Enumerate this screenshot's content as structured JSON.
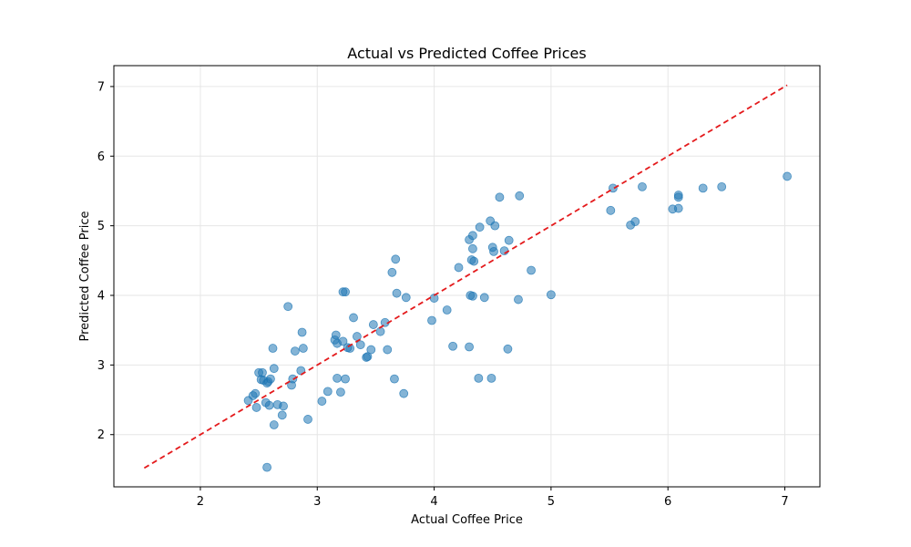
{
  "chart_data": {
    "type": "scatter",
    "title": "Actual vs Predicted Coffee Prices",
    "xlabel": "Actual Coffee Price",
    "ylabel": "Predicted Coffee Price",
    "xlim": [
      1.26,
      7.3
    ],
    "ylim": [
      1.25,
      7.3
    ],
    "xticks": [
      2,
      3,
      4,
      5,
      6,
      7
    ],
    "yticks": [
      2,
      3,
      4,
      5,
      6,
      7
    ],
    "grid": true,
    "colors": {
      "points": "#1f77b4",
      "reference_line": "#e41a1c"
    },
    "reference_line": {
      "style": "dashed",
      "from": [
        1.52,
        1.52
      ],
      "to": [
        7.02,
        7.02
      ]
    },
    "points": [
      [
        2.41,
        2.49
      ],
      [
        2.45,
        2.56
      ],
      [
        2.47,
        2.59
      ],
      [
        2.48,
        2.39
      ],
      [
        2.5,
        2.89
      ],
      [
        2.52,
        2.79
      ],
      [
        2.53,
        2.89
      ],
      [
        2.54,
        2.78
      ],
      [
        2.56,
        2.46
      ],
      [
        2.57,
        2.74
      ],
      [
        2.58,
        2.76
      ],
      [
        2.59,
        2.42
      ],
      [
        2.6,
        2.8
      ],
      [
        2.62,
        3.24
      ],
      [
        2.63,
        2.14
      ],
      [
        2.63,
        2.95
      ],
      [
        2.66,
        2.43
      ],
      [
        2.7,
        2.28
      ],
      [
        2.71,
        2.41
      ],
      [
        2.75,
        3.84
      ],
      [
        2.78,
        2.71
      ],
      [
        2.79,
        2.8
      ],
      [
        2.81,
        3.2
      ],
      [
        2.86,
        2.92
      ],
      [
        2.87,
        3.47
      ],
      [
        2.88,
        3.24
      ],
      [
        2.92,
        2.22
      ],
      [
        3.04,
        2.48
      ],
      [
        3.09,
        2.62
      ],
      [
        3.15,
        3.36
      ],
      [
        3.16,
        3.43
      ],
      [
        3.17,
        2.81
      ],
      [
        3.17,
        3.31
      ],
      [
        3.2,
        2.61
      ],
      [
        3.22,
        3.34
      ],
      [
        3.22,
        4.05
      ],
      [
        3.24,
        4.05
      ],
      [
        3.24,
        2.8
      ],
      [
        3.26,
        3.25
      ],
      [
        3.28,
        3.24
      ],
      [
        3.31,
        3.68
      ],
      [
        3.34,
        3.41
      ],
      [
        3.37,
        3.29
      ],
      [
        3.42,
        3.11
      ],
      [
        3.43,
        3.12
      ],
      [
        3.46,
        3.22
      ],
      [
        3.48,
        3.58
      ],
      [
        3.54,
        3.48
      ],
      [
        3.58,
        3.61
      ],
      [
        3.6,
        3.22
      ],
      [
        3.64,
        4.33
      ],
      [
        3.66,
        2.8
      ],
      [
        3.67,
        4.52
      ],
      [
        3.68,
        4.03
      ],
      [
        3.74,
        2.59
      ],
      [
        3.76,
        3.97
      ],
      [
        3.98,
        3.64
      ],
      [
        4.0,
        3.96
      ],
      [
        4.11,
        3.79
      ],
      [
        4.16,
        3.27
      ],
      [
        4.21,
        4.4
      ],
      [
        4.3,
        4.8
      ],
      [
        4.3,
        3.26
      ],
      [
        4.31,
        4.0
      ],
      [
        4.32,
        4.51
      ],
      [
        4.33,
        4.86
      ],
      [
        4.34,
        4.49
      ],
      [
        4.38,
        2.81
      ],
      [
        4.39,
        4.98
      ],
      [
        4.43,
        3.97
      ],
      [
        4.48,
        5.07
      ],
      [
        4.49,
        2.81
      ],
      [
        4.5,
        4.69
      ],
      [
        4.51,
        4.63
      ],
      [
        4.52,
        5.0
      ],
      [
        4.56,
        5.41
      ],
      [
        4.6,
        4.64
      ],
      [
        4.63,
        3.23
      ],
      [
        4.64,
        4.79
      ],
      [
        4.72,
        3.94
      ],
      [
        4.73,
        5.43
      ],
      [
        4.83,
        4.36
      ],
      [
        5.0,
        4.01
      ],
      [
        5.51,
        5.22
      ],
      [
        5.53,
        5.54
      ],
      [
        5.68,
        5.01
      ],
      [
        5.72,
        5.06
      ],
      [
        5.78,
        5.56
      ],
      [
        6.04,
        5.24
      ],
      [
        6.09,
        5.44
      ],
      [
        6.09,
        5.25
      ],
      [
        6.09,
        5.41
      ],
      [
        6.3,
        5.54
      ],
      [
        6.46,
        5.56
      ],
      [
        7.02,
        5.71
      ],
      [
        2.57,
        1.53
      ],
      [
        4.33,
        4.67
      ],
      [
        4.33,
        3.99
      ]
    ]
  }
}
